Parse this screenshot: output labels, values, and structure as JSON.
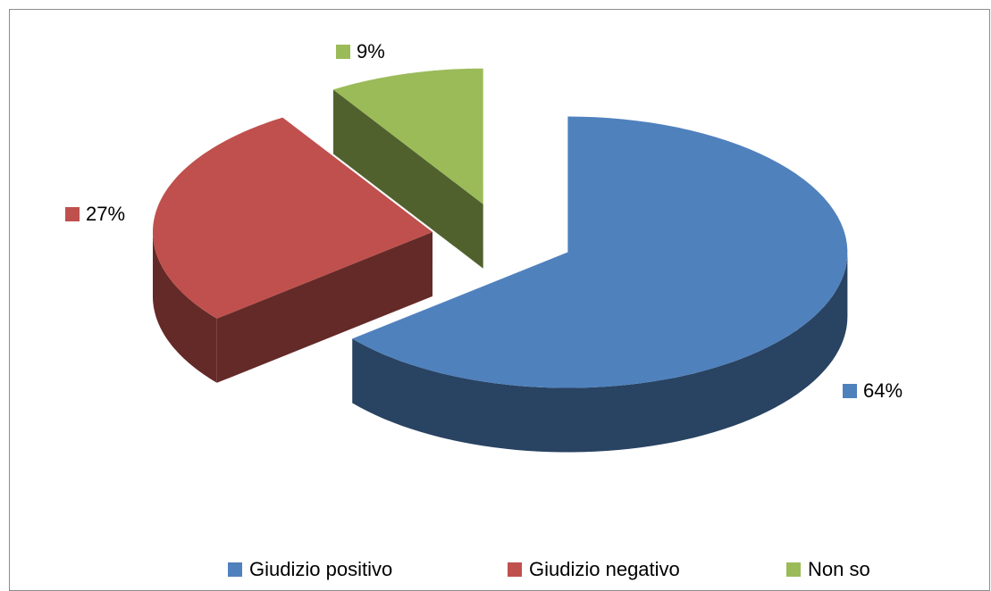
{
  "chart_data": {
    "type": "pie",
    "categories": [
      "Giudizio positivo",
      "Giudizio negativo",
      "Non so"
    ],
    "values": [
      64,
      27,
      9
    ],
    "value_labels": [
      "64%",
      "27%",
      "9%"
    ],
    "colors": [
      "#4f81bd",
      "#c0504d",
      "#9bbb59"
    ],
    "legend": "bottom"
  }
}
